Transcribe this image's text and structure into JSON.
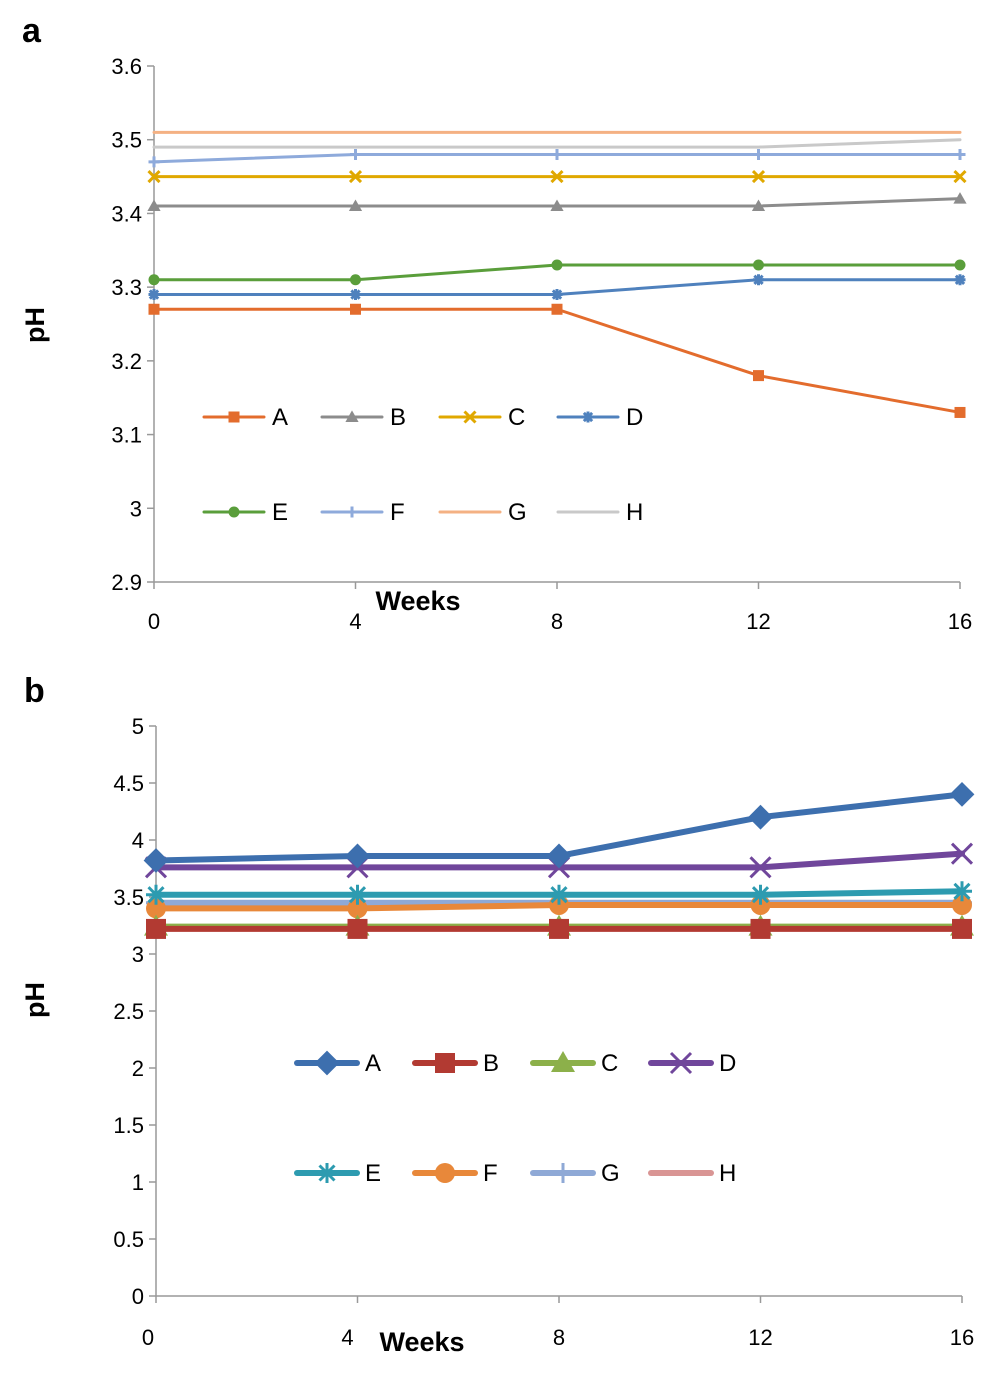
{
  "chart_data": [
    {
      "panel": "a",
      "type": "line",
      "xlabel": "Weeks",
      "ylabel": "pH",
      "x": [
        0,
        4,
        8,
        12,
        16
      ],
      "xticks": [
        "0",
        "4",
        "8",
        "12",
        "16"
      ],
      "ylim": [
        2.9,
        3.6
      ],
      "yticks": [
        "2.9",
        "3",
        "3.1",
        "3.2",
        "3.3",
        "3.4",
        "3.5",
        "3.6"
      ],
      "ytick_values": [
        2.9,
        3.0,
        3.1,
        3.2,
        3.3,
        3.4,
        3.5,
        3.6
      ],
      "series": [
        {
          "name": "A",
          "values": [
            3.27,
            3.27,
            3.27,
            3.18,
            3.13
          ],
          "color": "#e36c2d",
          "marker": "square"
        },
        {
          "name": "B",
          "values": [
            3.41,
            3.41,
            3.41,
            3.41,
            3.42
          ],
          "color": "#8c8c8c",
          "marker": "triangle"
        },
        {
          "name": "C",
          "values": [
            3.45,
            3.45,
            3.45,
            3.45,
            3.45
          ],
          "color": "#e0a800",
          "marker": "x"
        },
        {
          "name": "D",
          "values": [
            3.29,
            3.29,
            3.29,
            3.31,
            3.31
          ],
          "color": "#4f81bd",
          "marker": "star"
        },
        {
          "name": "E",
          "values": [
            3.31,
            3.31,
            3.33,
            3.33,
            3.33
          ],
          "color": "#5a9e3b",
          "marker": "circle"
        },
        {
          "name": "F",
          "values": [
            3.47,
            3.48,
            3.48,
            3.48,
            3.48
          ],
          "color": "#8eaadb",
          "marker": "plus"
        },
        {
          "name": "G",
          "values": [
            3.51,
            3.51,
            3.51,
            3.51,
            3.51
          ],
          "color": "#f4b183",
          "marker": "none"
        },
        {
          "name": "H",
          "values": [
            3.49,
            3.49,
            3.49,
            3.49,
            3.5
          ],
          "color": "#c9c9c9",
          "marker": "none"
        }
      ]
    },
    {
      "panel": "b",
      "type": "line",
      "xlabel": "Weeks",
      "ylabel": "pH",
      "x": [
        0,
        4,
        8,
        12,
        16
      ],
      "xticks": [
        "0",
        "4",
        "8",
        "12",
        "16"
      ],
      "ylim": [
        0,
        5
      ],
      "yticks": [
        "0",
        "0.5",
        "1",
        "1.5",
        "2",
        "2.5",
        "3",
        "3.5",
        "4",
        "4.5",
        "5"
      ],
      "ytick_values": [
        0,
        0.5,
        1,
        1.5,
        2,
        2.5,
        3,
        3.5,
        4,
        4.5,
        5
      ],
      "series": [
        {
          "name": "A",
          "values": [
            3.82,
            3.86,
            3.86,
            4.2,
            4.4
          ],
          "color": "#3d6fae",
          "marker": "diamond"
        },
        {
          "name": "B",
          "values": [
            3.22,
            3.22,
            3.22,
            3.22,
            3.22
          ],
          "color": "#b23a32",
          "marker": "square"
        },
        {
          "name": "C",
          "values": [
            3.24,
            3.24,
            3.24,
            3.24,
            3.24
          ],
          "color": "#8cb04a",
          "marker": "triangle"
        },
        {
          "name": "D",
          "values": [
            3.76,
            3.76,
            3.76,
            3.76,
            3.88
          ],
          "color": "#70469b",
          "marker": "x"
        },
        {
          "name": "E",
          "values": [
            3.52,
            3.52,
            3.52,
            3.52,
            3.55
          ],
          "color": "#2d9bb0",
          "marker": "star"
        },
        {
          "name": "F",
          "values": [
            3.4,
            3.4,
            3.43,
            3.43,
            3.43
          ],
          "color": "#e8883a",
          "marker": "circle"
        },
        {
          "name": "G",
          "values": [
            3.45,
            3.45,
            3.45,
            3.45,
            3.45
          ],
          "color": "#8fa9d6",
          "marker": "plus"
        },
        {
          "name": "H",
          "values": [
            3.43,
            3.43,
            3.43,
            3.43,
            3.43
          ],
          "color": "#d99594",
          "marker": "none"
        }
      ]
    }
  ]
}
